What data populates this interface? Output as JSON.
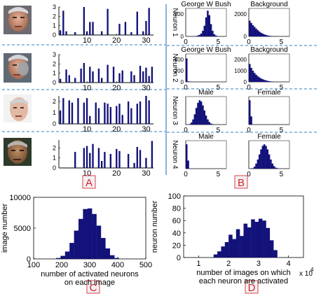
{
  "colors": {
    "bar": "#13127a",
    "axis": "#000000",
    "divider": "#6f9fcf",
    "separator": "#2f7fbf",
    "panel_label_border": "#e0404a",
    "panel_label_fill": "#f2f2f2",
    "panel_label_text": "#d8202c"
  },
  "panel_labels": {
    "a": "A",
    "b": "B",
    "c": "C",
    "d": "D"
  },
  "chart_data": [
    {
      "panel": "A",
      "type": "bar",
      "x_ticks": [
        "10",
        "20",
        "30"
      ],
      "rows": [
        {
          "y_ticks": [
            "0",
            "1",
            "2",
            "3"
          ],
          "ylim": [
            0,
            3
          ],
          "values": [
            0.5,
            2.6,
            0.4,
            0.0,
            0.0,
            0.3,
            0.0,
            0.0,
            3.0,
            0.4,
            1.4,
            1.4,
            0.0,
            0.0,
            0.4,
            0.0,
            2.8,
            0.0,
            0.0,
            0.0,
            1.2,
            0.0,
            1.4,
            0.0,
            0.3,
            0.0,
            2.5,
            0.0,
            0.4,
            1.5,
            2.9,
            0.0
          ]
        },
        {
          "y_ticks": [
            "0",
            "1",
            "2",
            "3"
          ],
          "ylim": [
            0,
            3
          ],
          "values": [
            0.4,
            0.0,
            1.4,
            0.8,
            0.0,
            0.5,
            0.0,
            1.5,
            2.1,
            0.0,
            1.7,
            1.2,
            0.0,
            1.5,
            0.5,
            0.0,
            1.9,
            0.0,
            1.7,
            0.0,
            1.0,
            1.3,
            0.0,
            0.0,
            1.2,
            0.8,
            0.0,
            1.8,
            1.2,
            1.6,
            0.7,
            1.7
          ]
        },
        {
          "y_ticks": [
            "0",
            "1",
            "2"
          ],
          "ylim": [
            0,
            2.5
          ],
          "values": [
            1.2,
            2.3,
            0.0,
            2.1,
            1.9,
            0.0,
            2.3,
            0.0,
            1.9,
            2.3,
            0.7,
            0.0,
            1.9,
            1.4,
            0.0,
            1.9,
            1.8,
            1.5,
            0.0,
            1.6,
            1.8,
            0.8,
            0.0,
            2.0,
            1.4,
            0.0,
            1.8,
            2.0,
            0.0,
            2.5,
            2.1,
            0.0
          ]
        },
        {
          "y_ticks": [
            "0",
            "1",
            "2"
          ],
          "ylim": [
            0,
            2.8
          ],
          "values": [
            0.0,
            0.0,
            0.0,
            0.0,
            0.0,
            1.6,
            0.0,
            0.0,
            2.0,
            2.2,
            1.5,
            2.4,
            0.0,
            2.0,
            0.7,
            1.6,
            0.0,
            1.4,
            0.0,
            1.9,
            1.7,
            0.0,
            0.0,
            1.4,
            0.0,
            0.5,
            2.1,
            1.8,
            0.0,
            1.0,
            0.0,
            2.7
          ]
        }
      ]
    },
    {
      "panel": "B",
      "type": "bar",
      "rows": [
        {
          "ylabel": "Neuron 1",
          "left": {
            "title": "George W Bush",
            "y_ticks": [
              "0",
              "200"
            ],
            "ylim": [
              0,
              250
            ],
            "x_ticks": [
              "0",
              "5"
            ],
            "values": [
              0,
              0,
              0,
              0,
              0,
              2,
              4,
              8,
              14,
              25,
              50,
              95,
              170,
              230,
              190,
              110,
              50,
              20,
              8,
              3,
              1,
              0,
              0,
              0,
              0
            ]
          },
          "right": {
            "title": "Background",
            "y_ticks": [
              "0",
              "2000"
            ],
            "ylim": [
              0,
              2500
            ],
            "x_ticks": [
              "0",
              "5"
            ],
            "values": [
              1400,
              1200,
              1000,
              850,
              700,
              560,
              430,
              330,
              250,
              180,
              130,
              90,
              60,
              40,
              25,
              15,
              10,
              6,
              3,
              2,
              1,
              0,
              0,
              0,
              0
            ]
          }
        },
        {
          "ylabel": "Neuron 2",
          "left": {
            "title": "George W Bush",
            "y_ticks": [
              "0",
              "200",
              "400"
            ],
            "ylim": [
              0,
              500
            ],
            "x_ticks": [
              "0",
              "5"
            ],
            "values": [
              420,
              10,
              4,
              2,
              1,
              0,
              0,
              0,
              0,
              0,
              0,
              0,
              0,
              0,
              0,
              0,
              0,
              0,
              0,
              0,
              0,
              0,
              0,
              0,
              0
            ]
          },
          "right": {
            "title": "Background",
            "y_ticks": [
              "0",
              "1000",
              "2000"
            ],
            "ylim": [
              0,
              2500
            ],
            "x_ticks": [
              "0",
              "5"
            ],
            "values": [
              1600,
              1250,
              1000,
              800,
              640,
              510,
              400,
              310,
              240,
              180,
              130,
              95,
              65,
              45,
              30,
              20,
              12,
              7,
              4,
              2,
              1,
              0,
              0,
              0,
              0
            ]
          }
        },
        {
          "ylabel": "Neuron 3",
          "left": {
            "title": "Male",
            "x_ticks": [
              "0",
              "5"
            ],
            "values": [
              0,
              0,
              2,
              8,
              20,
              40,
              65,
              85,
              95,
              90,
              75,
              55,
              35,
              20,
              10,
              4,
              2,
              0,
              0,
              0,
              0,
              0,
              0,
              0,
              0
            ]
          },
          "right": {
            "title": "Female",
            "x_ticks": [
              "0",
              "5"
            ],
            "values": [
              3,
              1,
              0,
              0,
              0,
              0,
              0,
              0,
              0,
              0,
              0,
              0,
              0,
              0,
              0,
              0,
              0,
              0,
              0,
              0,
              0,
              0,
              0,
              0,
              0
            ]
          }
        },
        {
          "ylabel": "Neuron 4",
          "left": {
            "title": "Male",
            "x_ticks": [
              "0",
              "5"
            ],
            "values": [
              3,
              1,
              0,
              0,
              0,
              0,
              0,
              0,
              0,
              0,
              0,
              0,
              0,
              0,
              0,
              0,
              0,
              0,
              0,
              0,
              0,
              0,
              0,
              0,
              0
            ]
          },
          "right": {
            "title": "Female",
            "x_ticks": [
              "0",
              "5"
            ],
            "values": [
              0,
              0,
              1,
              4,
              10,
              18,
              28,
              38,
              45,
              48,
              45,
              38,
              28,
              18,
              10,
              5,
              2,
              1,
              0,
              0,
              0,
              0,
              0,
              0,
              0
            ]
          }
        }
      ]
    },
    {
      "panel": "C",
      "type": "bar",
      "xlabel": "number of activated neurons\non each image",
      "ylabel": "image number",
      "xlim": [
        100,
        500
      ],
      "ylim": [
        0,
        10000
      ],
      "x_ticks": [
        "100",
        "200",
        "300",
        "400",
        "500"
      ],
      "y_ticks": [
        "0",
        "5000",
        "10000"
      ],
      "bin_width": 16,
      "x": [
        188,
        204,
        220,
        236,
        252,
        268,
        284,
        300,
        316,
        332,
        348,
        364,
        380,
        396
      ],
      "values": [
        150,
        500,
        1200,
        2600,
        4600,
        6500,
        8100,
        8200,
        7300,
        5400,
        3400,
        1700,
        600,
        150
      ]
    },
    {
      "panel": "D",
      "type": "bar",
      "xlabel": "number of images on which\neach neuron are activated",
      "x_multiplier_label": "x 10",
      "x_multiplier_exponent": "4",
      "ylabel": "neuron number",
      "xlim": [
        0.5,
        4.5
      ],
      "ylim": [
        0,
        100
      ],
      "x_ticks": [
        "1",
        "2",
        "3",
        "4"
      ],
      "y_ticks": [
        "0",
        "20",
        "40",
        "60",
        "80",
        "100"
      ],
      "bin_width": 0.125,
      "x": [
        1.5625,
        1.6875,
        1.8125,
        1.9375,
        2.0625,
        2.1875,
        2.3125,
        2.4375,
        2.5625,
        2.6875,
        2.8125,
        2.9375,
        3.0625,
        3.1875,
        3.3125,
        3.4375,
        3.5625
      ],
      "values": [
        5,
        10,
        18,
        25,
        37,
        30,
        46,
        35,
        55,
        49,
        62,
        58,
        63,
        60,
        48,
        28,
        12
      ]
    }
  ]
}
